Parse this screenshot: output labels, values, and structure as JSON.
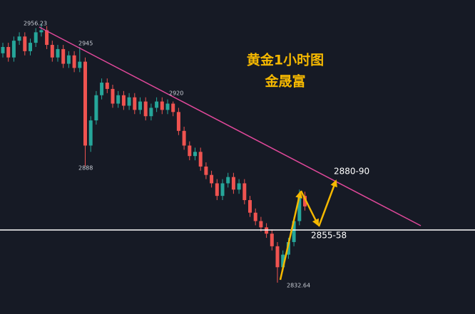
{
  "chart_data": {
    "type": "candlestick",
    "title": [
      "黄金1小时图",
      "金晟富"
    ],
    "candles": [
      [
        2942,
        2947,
        2940,
        2945
      ],
      [
        2945,
        2947,
        2938,
        2940
      ],
      [
        2940,
        2950,
        2938,
        2948
      ],
      [
        2948,
        2952,
        2946,
        2950
      ],
      [
        2950,
        2952,
        2941,
        2943
      ],
      [
        2943,
        2949,
        2941,
        2947
      ],
      [
        2947,
        2954,
        2945,
        2952
      ],
      [
        2952,
        2956.23,
        2950,
        2953
      ],
      [
        2953,
        2955,
        2944,
        2946
      ],
      [
        2946,
        2948,
        2938,
        2940
      ],
      [
        2940,
        2946,
        2938,
        2944
      ],
      [
        2944,
        2946,
        2935,
        2937
      ],
      [
        2937,
        2943,
        2935,
        2941
      ],
      [
        2941,
        2943,
        2933,
        2935
      ],
      [
        2935,
        2945,
        2933,
        2938
      ],
      [
        2938,
        2940,
        2888,
        2898
      ],
      [
        2898,
        2912,
        2895,
        2910
      ],
      [
        2910,
        2924,
        2908,
        2922
      ],
      [
        2922,
        2930,
        2920,
        2928
      ],
      [
        2928,
        2930,
        2923,
        2925
      ],
      [
        2925,
        2927,
        2916,
        2918
      ],
      [
        2918,
        2924,
        2916,
        2922
      ],
      [
        2922,
        2924,
        2915,
        2917
      ],
      [
        2917,
        2923,
        2915,
        2921
      ],
      [
        2921,
        2923,
        2913,
        2915
      ],
      [
        2915,
        2921,
        2913,
        2919
      ],
      [
        2919,
        2921,
        2910,
        2912
      ],
      [
        2912,
        2918,
        2910,
        2916
      ],
      [
        2916,
        2921,
        2914,
        2919
      ],
      [
        2919,
        2921,
        2913,
        2915
      ],
      [
        2915,
        2920,
        2913,
        2918
      ],
      [
        2918,
        2919,
        2912,
        2914
      ],
      [
        2914,
        2916,
        2903,
        2905
      ],
      [
        2905,
        2907,
        2896,
        2898
      ],
      [
        2898,
        2900,
        2891,
        2893
      ],
      [
        2893,
        2897,
        2891,
        2895
      ],
      [
        2895,
        2897,
        2886,
        2888
      ],
      [
        2888,
        2890,
        2882,
        2884
      ],
      [
        2884,
        2886,
        2878,
        2880
      ],
      [
        2880,
        2882,
        2872,
        2874
      ],
      [
        2874,
        2882,
        2872,
        2880
      ],
      [
        2880,
        2885,
        2878,
        2883
      ],
      [
        2883,
        2885,
        2875,
        2877
      ],
      [
        2877,
        2882,
        2875,
        2880
      ],
      [
        2880,
        2882,
        2870,
        2872
      ],
      [
        2872,
        2874,
        2864,
        2866
      ],
      [
        2866,
        2868,
        2860,
        2862
      ],
      [
        2862,
        2864,
        2857,
        2859
      ],
      [
        2859,
        2861,
        2854,
        2856
      ],
      [
        2856,
        2858,
        2848,
        2850
      ],
      [
        2850,
        2852,
        2832.64,
        2840
      ],
      [
        2840,
        2848,
        2838,
        2846
      ],
      [
        2846,
        2854,
        2844,
        2852
      ],
      [
        2852,
        2864,
        2850,
        2862
      ],
      [
        2862,
        2877,
        2860,
        2874
      ],
      [
        2874,
        2876,
        2867,
        2869
      ]
    ],
    "ylim": [
      2817.7,
      2967.4
    ],
    "up_color": "#26a69a",
    "down_color": "#ef5350",
    "price_labels": [
      "2956.23",
      "2945",
      "2920",
      "2888",
      "2832.64"
    ],
    "level_labels": [
      "2880-90",
      "2855-58"
    ]
  }
}
